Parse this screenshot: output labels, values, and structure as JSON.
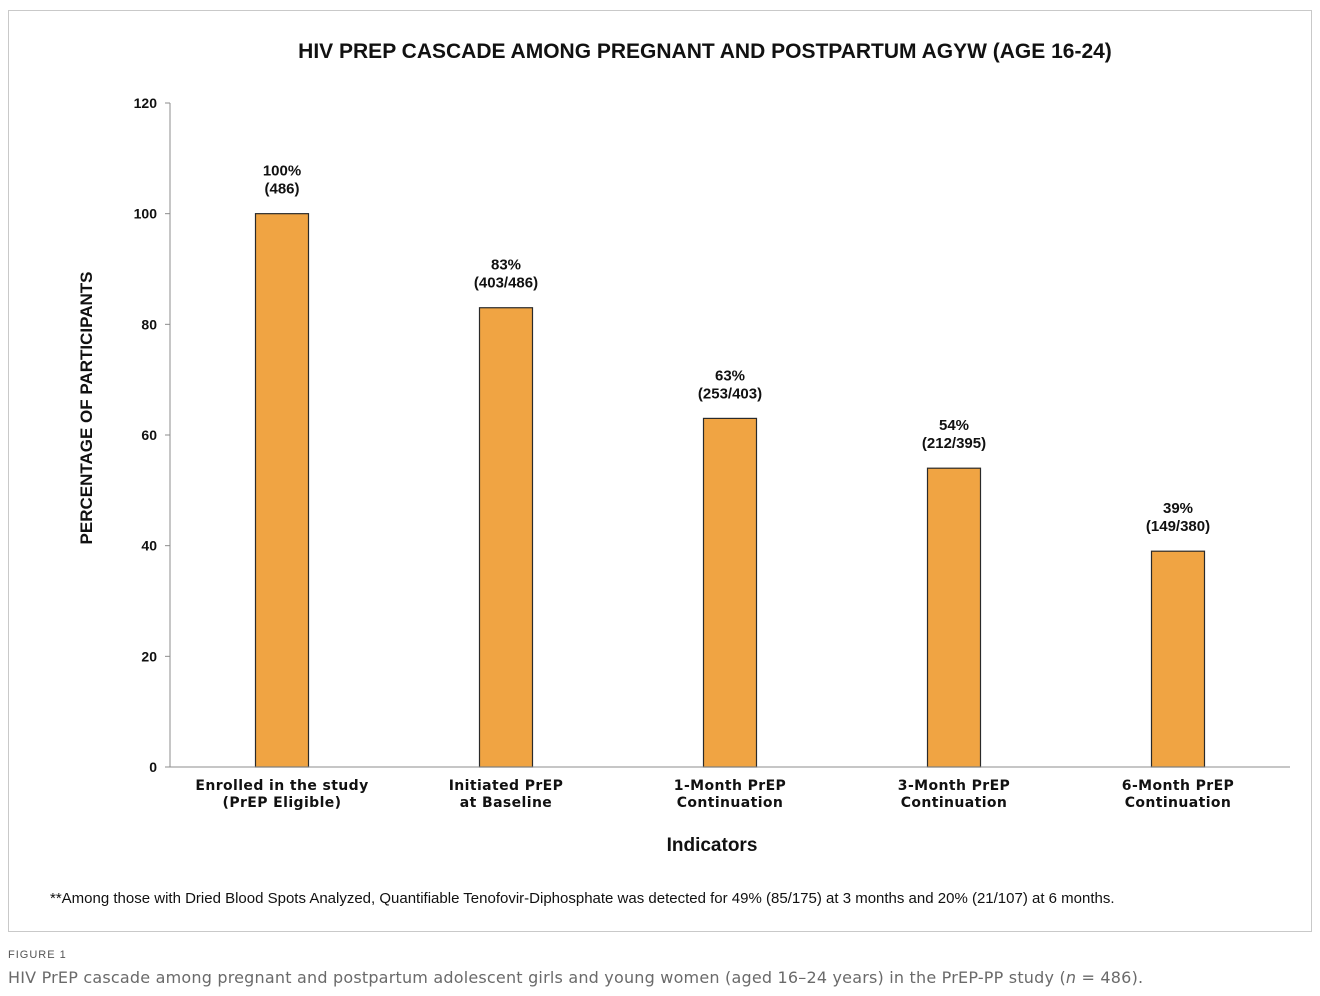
{
  "figure": {
    "label": "FIGURE 1",
    "caption_before": "HIV PrEP cascade among pregnant and postpartum adolescent girls and young women (aged 16–24 years) in the PrEP-PP study (",
    "caption_italic": "n",
    "caption_after": " = 486).",
    "footnote": "**Among those with Dried Blood Spots Analyzed, Quantifiable Tenofovir-Diphosphate was detected for 49% (85/175) at 3 months and 20% (21/107) at 6 months."
  },
  "chart_data": {
    "type": "bar",
    "title": "HIV PREP CASCADE AMONG PREGNANT AND POSTPARTUM AGYW (AGE 16-24)",
    "xlabel": "Indicators",
    "ylabel": "PERCENTAGE OF PARTICIPANTS",
    "ylim": [
      0,
      120
    ],
    "yticks": [
      0,
      20,
      40,
      60,
      80,
      100,
      120
    ],
    "categories": [
      [
        "Enrolled in the study",
        "(PrEP Eligible)"
      ],
      [
        "Initiated PrEP",
        "at Baseline"
      ],
      [
        "1-Month PrEP",
        "Continuation"
      ],
      [
        "3-Month PrEP",
        "Continuation"
      ],
      [
        "6-Month PrEP",
        "Continuation"
      ]
    ],
    "values": [
      100,
      83,
      63,
      54,
      39
    ],
    "data_labels": [
      [
        "100%",
        "(486)"
      ],
      [
        "83%",
        "(403/486)"
      ],
      [
        "63%",
        "(253/403)"
      ],
      [
        "54%",
        "(212/395)"
      ],
      [
        "39%",
        "(149/380)"
      ]
    ],
    "grid": false,
    "legend": "none",
    "colors": {
      "bar_fill": "#F0A443",
      "bar_stroke": "#2a2a2a",
      "axis": "#8c8c8c"
    }
  }
}
